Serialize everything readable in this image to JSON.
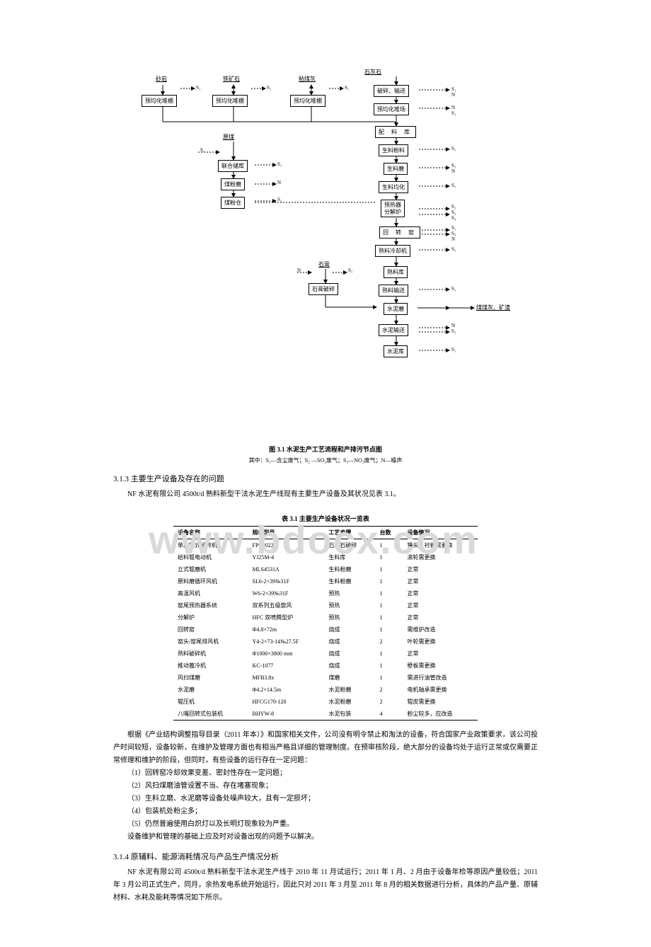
{
  "flowchart": {
    "top_labels": {
      "limestone": "石灰石",
      "sand": "砂岩",
      "iron": "铁矿石",
      "mud": "粘煤灰",
      "s1": "S₁",
      "n": "N"
    },
    "nodes": {
      "crush_convey": "破碎、输送",
      "homog1": "预均化堆棚",
      "homog2": "预均化堆棚",
      "homog3": "预均化堆棚",
      "homog_yard": "预均化堆场",
      "mix_storage": "配 料 库",
      "raw_mill": "生料粉料",
      "raw_grind": "生料磨",
      "raw_homog": "生料均化",
      "preheater": "预热器\n分解炉",
      "kiln": "回 转 窑",
      "clinker_cool": "熟料冷却机",
      "clinker_store": "熟料库",
      "clinker_convey": "熟料输送",
      "cement_mill": "水泥磨",
      "cement_convey": "水泥输送",
      "cement_store": "水泥库",
      "coal_storage": "联合储库",
      "coal_mill": "煤粉磨",
      "coal_powder": "煤粉仓",
      "gypsum_crush": "石膏破碎",
      "gypsum": "石膏",
      "pulv_label": "煤煤灰、矿渣"
    },
    "raw_coal": "原煤",
    "side_s": "S₁",
    "side_s2": "S₂",
    "side_s3": "S₃",
    "side_n": "N"
  },
  "fig_caption": "图 3.1  水泥生产工艺流程和产排污节点图",
  "fig_sub": "其中：S₁—含尘废气；S₂ —SO₂废气；S₃—NO₂废气；N—噪声",
  "section313_title": "3.1.3 主要生产设备及存在的问题",
  "section313_p1": "NF 水泥有限公司 4500t/d 熟料新型干法水泥生产线现有主要生产设备及其状况见表 3.1。",
  "table_title": "表 3.1 主要生产设备状况一览表",
  "equipment_table": {
    "headers": [
      "设备名称",
      "规格型号",
      "工艺步骤",
      "台数",
      "设备情况"
    ],
    "rows": [
      [
        "单段锤式破碎机",
        "FPC2022",
        "石灰石破碎",
        "1",
        "锤头、衬板需更换"
      ],
      [
        "给料辊电动机",
        "YJ25M-4",
        "生料库",
        "1",
        "滚轮需更换"
      ],
      [
        "立式辊磨机",
        "MLS4531A",
        "生料粉磨",
        "1",
        "正常"
      ],
      [
        "原料磨循环风机",
        "SL6-2×39№31F",
        "生料粉磨",
        "1",
        "正常"
      ],
      [
        "高温风机",
        "W6-2×39№31F",
        "预热",
        "1",
        "正常"
      ],
      [
        "窑尾预热器系统",
        "双系列五级旋风",
        "预热",
        "1",
        "正常"
      ],
      [
        "分解炉",
        "HFC 双喷腾型炉",
        "预热",
        "1",
        "正常"
      ],
      [
        "回转窑",
        "Φ4.8×72m",
        "烧成",
        "1",
        "需维护改造"
      ],
      [
        "窑头/窑尾排风机",
        "Y4-2×73-14№27.5F",
        "烧成",
        "2",
        "叶轮需更换"
      ],
      [
        "熟料破碎机",
        "Φ1000×3800 mm",
        "烧成",
        "1",
        "正常"
      ],
      [
        "推动篦冷机",
        "KC-1077",
        "烧成",
        "1",
        "壁板需更换"
      ],
      [
        "风扫煤磨",
        "MFB3.8x",
        "煤磨",
        "1",
        "需进行油管改造"
      ],
      [
        "水泥磨",
        "Φ4.2×14.5m",
        "水泥粉磨",
        "2",
        "电机轴承需更换"
      ],
      [
        "辊压机",
        "HFCG170-120",
        "水泥粉磨",
        "2",
        "辊皮需更换"
      ],
      [
        "八嘴回转式包装机",
        "BHYW-8",
        "水泥包装",
        "4",
        "粉尘较多，应改造"
      ]
    ]
  },
  "watermark": "www.bdocx.com",
  "para_after_table": "根据《产业结构调整指导目录（2011 年本）》和国家相关文件，公司没有明令禁止和淘汰的设备，符合国家产业政策要求，该公司投产时间较短，设备较新，在维护及管理方面也有相当严格且详细的管理制度。在预审核阶段，绝大部分的设备均处于运行正常或仅需要正常修理和维护的阶段，但同时，有些设备的运行存在一定问题：",
  "issues": [
    "（1）回转窑冷却效果变差、密封性存在一定问题；",
    "（2）风扫煤磨油管设置不当、存在堵塞现象；",
    "（3）生料立磨、水泥磨等设备处噪声较大，且有一定损坏；",
    "（4）包装机处粉尘多；",
    "（5）仍然普遍使用白炽灯以及长明灯现象较为严重。"
  ],
  "issue_tail": "设备维护和管理的基础上应及时对设备出现的问题予以解决。",
  "section314_title": "3.1.4 原辅料、能源消耗情况与产品生产情况分析",
  "section314_p1": "NF 水泥有限公司 4500t/d 熟料新型干法水泥生产线于 2010 年 11 月试运行；2011 年 1 月、2 月由于设备年检等原因产量较低；2011 年 3 月公司正式生产，同月，余热发电系统开始运行，因此只对 2011 年 3 月至 2011 年 8 月的相关数据进行分析，具体的产品产量、原辅材料、水耗及能耗等情况如下所示。"
}
